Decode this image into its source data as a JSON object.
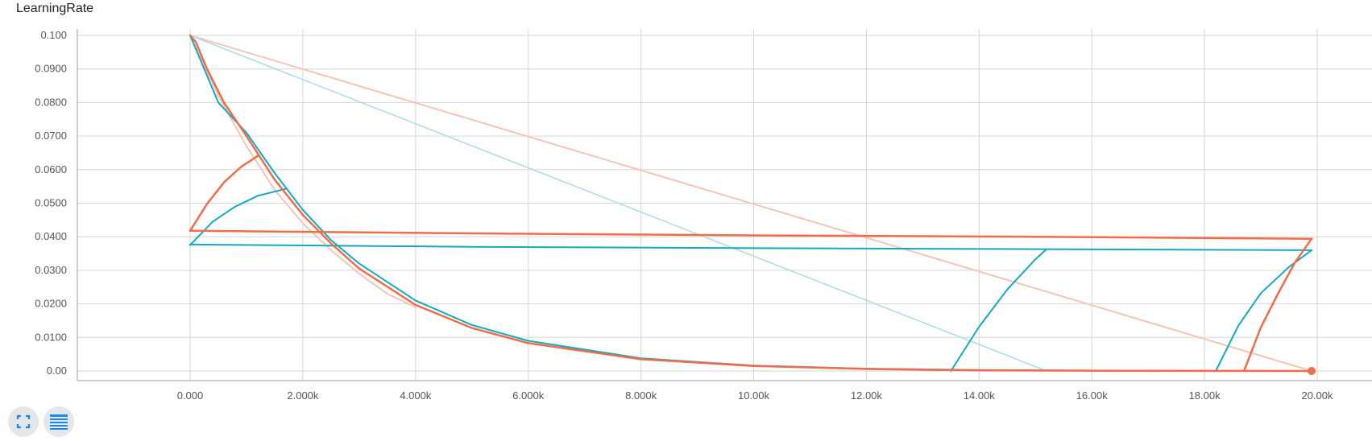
{
  "title": "LearningRate",
  "controls": {
    "expand_icon": "fullscreen-icon",
    "data_selection_icon": "list-icon"
  },
  "colors": {
    "orange": "#f06d49",
    "teal": "#12aac0",
    "orange_faint": "#f7c4b6",
    "teal_faint": "#a9dde7"
  },
  "chart_data": {
    "type": "line",
    "title": "LearningRate",
    "xlabel": "",
    "ylabel": "",
    "xlim": [
      -2000,
      20900
    ],
    "ylim": [
      -0.0028,
      0.1025
    ],
    "grid": true,
    "legend": "none",
    "x_ticks": [
      0,
      2000,
      4000,
      6000,
      8000,
      10000,
      12000,
      14000,
      16000,
      18000,
      20000
    ],
    "x_tick_labels": [
      "0.000",
      "2.000k",
      "4.000k",
      "6.000k",
      "8.000k",
      "10.00k",
      "12.00k",
      "14.00k",
      "16.00k",
      "18.00k",
      "20.00k"
    ],
    "y_ticks": [
      0,
      0.01,
      0.02,
      0.03,
      0.04,
      0.05,
      0.06,
      0.07,
      0.08,
      0.09,
      0.1
    ],
    "y_tick_labels": [
      "0.00",
      "0.0100",
      "0.0200",
      "0.0300",
      "0.0400",
      "0.0500",
      "0.0600",
      "0.0700",
      "0.0800",
      "0.0900",
      "0.100"
    ],
    "series": [
      {
        "color": "#f7c4b6",
        "width": 2,
        "x": [
          0,
          19900
        ],
        "y": [
          0.1,
          0.0
        ]
      },
      {
        "color": "#a9dde7",
        "width": 1.5,
        "x": [
          0,
          15200
        ],
        "y": [
          0.1,
          0.0
        ]
      },
      {
        "color": "#f7c4b6",
        "width": 2,
        "x": [
          0,
          500,
          1000,
          1500,
          2000,
          2500,
          3000,
          3500,
          4000
        ],
        "y": [
          0.1,
          0.082,
          0.067,
          0.054,
          0.044,
          0.036,
          0.029,
          0.023,
          0.019
        ]
      },
      {
        "color": "#12aac0",
        "width": 2,
        "x": [
          0,
          500,
          1000,
          1500,
          2000,
          2500,
          3000,
          4000,
          5000,
          6000,
          8000,
          10000,
          12000,
          14000,
          16000,
          18000,
          19900
        ],
        "y": [
          0.1,
          0.08,
          0.071,
          0.059,
          0.048,
          0.039,
          0.032,
          0.021,
          0.0137,
          0.009,
          0.0038,
          0.0016,
          0.0007,
          0.0003,
          0.0001,
          5e-05,
          0.0
        ]
      },
      {
        "color": "#12aac0",
        "width": 2,
        "x": [
          0,
          400,
          800,
          1200,
          1700
        ],
        "y": [
          0.0375,
          0.0445,
          0.049,
          0.0522,
          0.0543
        ]
      },
      {
        "color": "#12aac0",
        "width": 2,
        "x": [
          0,
          5000,
          10000,
          15000,
          19900
        ],
        "y": [
          0.0377,
          0.037,
          0.0366,
          0.0363,
          0.036
        ]
      },
      {
        "color": "#12aac0",
        "width": 2,
        "x": [
          13500,
          14000,
          14500,
          15000,
          15200
        ],
        "y": [
          0.0,
          0.0132,
          0.0243,
          0.0333,
          0.0363
        ]
      },
      {
        "color": "#12aac0",
        "width": 2,
        "x": [
          18200,
          18600,
          19000,
          19500,
          19900
        ],
        "y": [
          0.0,
          0.0135,
          0.0232,
          0.031,
          0.036
        ]
      },
      {
        "color": "#f06d49",
        "width": 2.5,
        "x": [
          0,
          100,
          300,
          600,
          1000,
          1500,
          2000,
          2500,
          3000,
          4000,
          5000,
          6000,
          8000,
          10000,
          12000,
          14000,
          16000,
          18000,
          19900
        ],
        "y": [
          0.1,
          0.098,
          0.09,
          0.08,
          0.07,
          0.057,
          0.0465,
          0.038,
          0.0305,
          0.0197,
          0.0128,
          0.0083,
          0.0035,
          0.0015,
          0.0006,
          0.0002,
          0.0001,
          3e-05,
          0.0
        ]
      },
      {
        "color": "#f06d49",
        "width": 2.5,
        "x": [
          0,
          300,
          600,
          900,
          1200
        ],
        "y": [
          0.0418,
          0.0498,
          0.0562,
          0.0608,
          0.0641
        ]
      },
      {
        "color": "#f06d49",
        "width": 2.5,
        "x": [
          0,
          5000,
          10000,
          15000,
          19900
        ],
        "y": [
          0.0418,
          0.041,
          0.0404,
          0.04,
          0.0394
        ]
      },
      {
        "color": "#f06d49",
        "width": 2.5,
        "x": [
          18700,
          19000,
          19300,
          19600,
          19900
        ],
        "y": [
          0.0,
          0.013,
          0.0229,
          0.0322,
          0.0394
        ]
      }
    ],
    "marker": {
      "x": 19900,
      "y": 0.0,
      "color": "#f06d49"
    }
  }
}
